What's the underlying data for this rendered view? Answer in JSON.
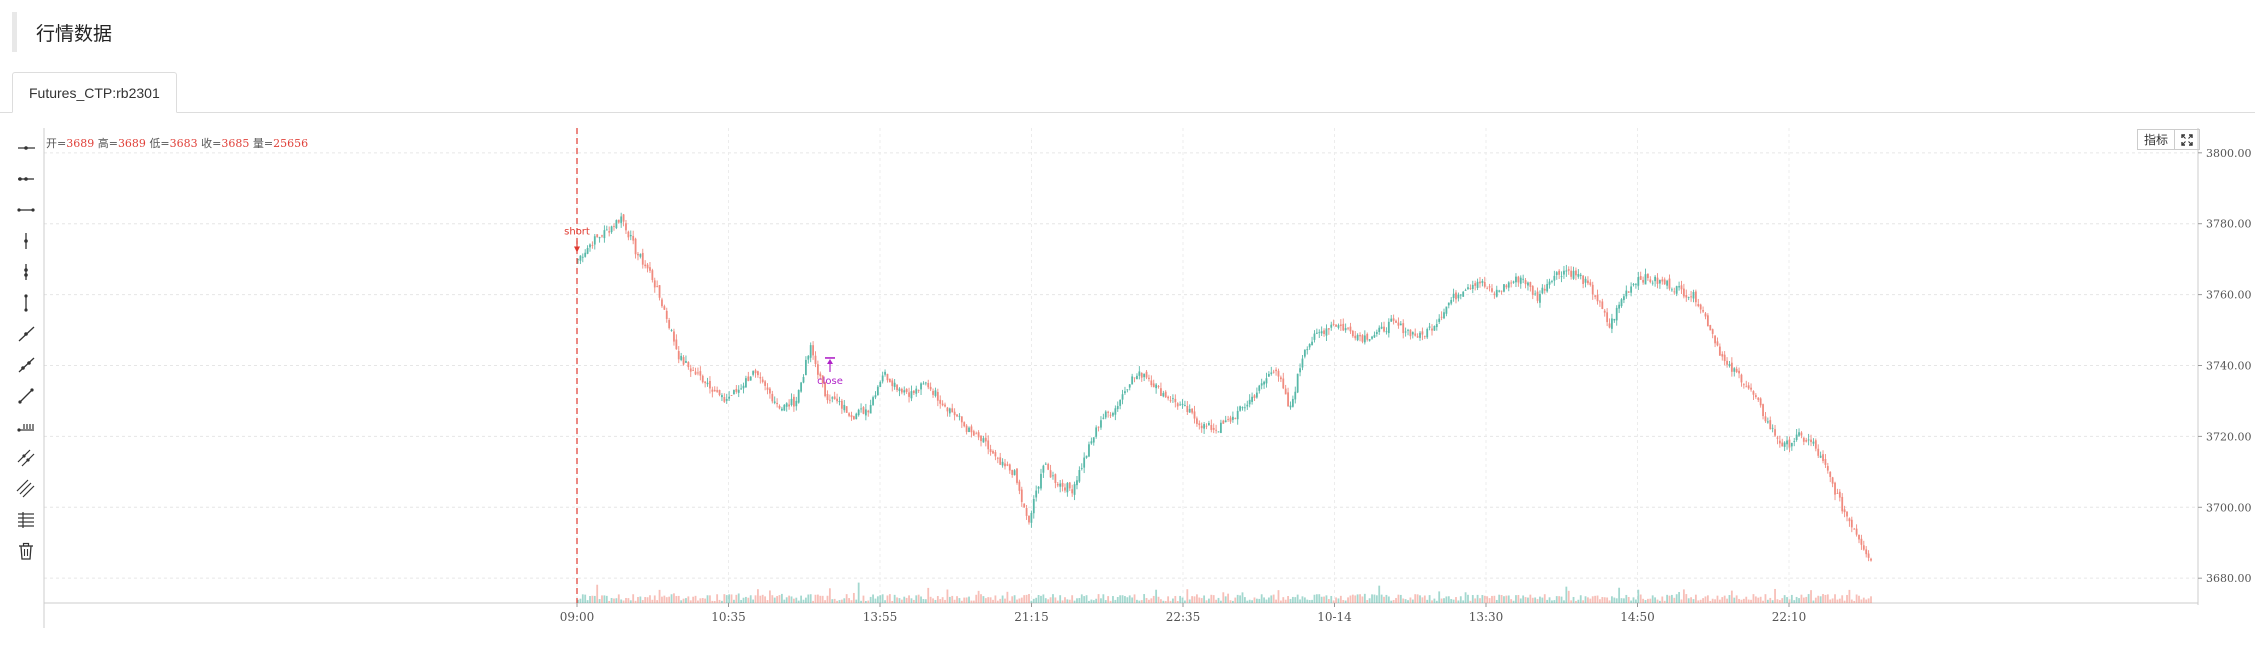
{
  "page": {
    "title": "行情数据"
  },
  "tabs": [
    {
      "label": "Futures_CTP:rb2301"
    }
  ],
  "toolbar": {
    "tools": [
      "horizontal-ray",
      "horizontal-segment",
      "horizontal-line",
      "vertical-ray",
      "vertical-segment",
      "vertical-line",
      "trend-ray",
      "trend-segment",
      "trend-line",
      "price-range",
      "parallel-channel",
      "multi-channel",
      "fibonacci",
      "delete"
    ]
  },
  "indicator_buttons": {
    "indicator_label": "指标",
    "fullscreen_icon": "fullscreen-icon"
  },
  "ohlc_legend": {
    "open_label": "开=",
    "open": "3689",
    "high_label": "高=",
    "high": "3689",
    "low_label": "低=",
    "low": "3683",
    "close_label": "收=",
    "close": "3685",
    "volume_label": "量=",
    "volume": "25656"
  },
  "colors": {
    "up": "#57b8a8",
    "down": "#f08a7e",
    "marker": "#e03a30",
    "close_marker": "#b023c8"
  },
  "chart_data": {
    "type": "candlestick",
    "y_ticks": [
      "3680.00",
      "3700.00",
      "3720.00",
      "3740.00",
      "3760.00",
      "3780.00",
      "3800.00"
    ],
    "ylim": [
      3673,
      3807
    ],
    "x_ticks": [
      "09:00",
      "10:35",
      "13:55",
      "21:15",
      "22:35",
      "10-14",
      "13:30",
      "14:50",
      "22:10"
    ],
    "close_path": [
      3770,
      3775,
      3778,
      3782,
      3772,
      3766,
      3755,
      3742,
      3738,
      3735,
      3730,
      3733,
      3738,
      3733,
      3728,
      3730,
      3745,
      3732,
      3729,
      3726,
      3728,
      3738,
      3734,
      3732,
      3735,
      3730,
      3726,
      3721,
      3718,
      3712,
      3710,
      3695,
      3712,
      3707,
      3705,
      3715,
      3725,
      3728,
      3736,
      3738,
      3733,
      3730,
      3727,
      3723,
      3722,
      3725,
      3729,
      3734,
      3740,
      3727,
      3745,
      3749,
      3752,
      3750,
      3748,
      3749,
      3752,
      3750,
      3748,
      3752,
      3758,
      3762,
      3764,
      3760,
      3763,
      3765,
      3759,
      3765,
      3767,
      3765,
      3760,
      3751,
      3760,
      3765,
      3764,
      3763,
      3761,
      3759,
      3750,
      3740,
      3737,
      3731,
      3723,
      3717,
      3720,
      3718,
      3710,
      3700,
      3693,
      3685
    ],
    "markers": [
      {
        "label": "short",
        "x_tick_ref": "09:00",
        "price": 3773
      },
      {
        "label": "close",
        "price": 3741
      }
    ],
    "grid": true
  }
}
